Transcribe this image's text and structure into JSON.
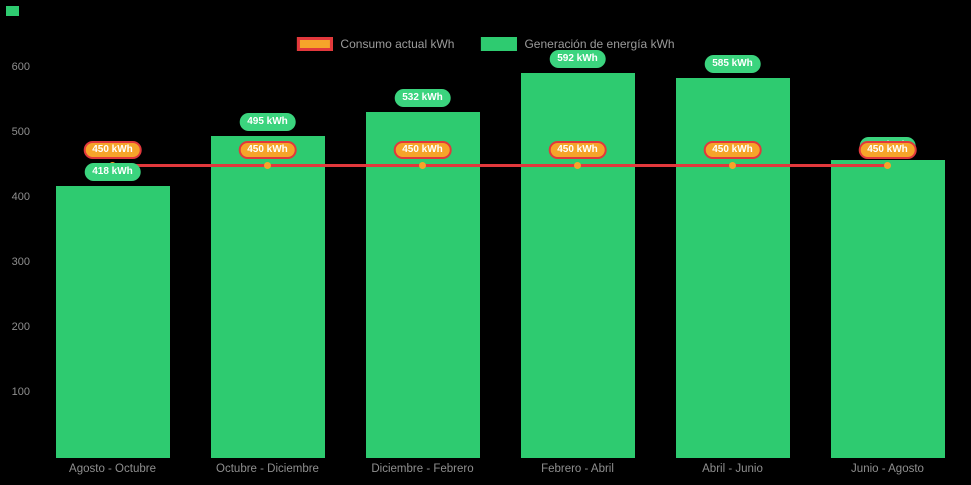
{
  "page": {
    "background": "#000000"
  },
  "legend": [
    {
      "label": "Consumo actual kWh",
      "type": "line",
      "swatch_fill": "#f6a42a",
      "swatch_border": "#e2383c"
    },
    {
      "label": "Generación de energía kWh",
      "type": "bar",
      "swatch_fill": "#2ecb70",
      "swatch_border": "#2ecb70"
    }
  ],
  "chart_data": {
    "type": "bar",
    "categories": [
      "Agosto - Octubre",
      "Octubre - Diciembre",
      "Diciembre - Febrero",
      "Febrero - Abril",
      "Abril - Junio",
      "Junio - Agosto"
    ],
    "series": [
      {
        "name": "Generación de energía kWh",
        "type": "bar",
        "color": "#2ecb70",
        "label_color": "#3bd47e",
        "values": [
          418,
          495,
          532,
          592,
          585,
          458
        ],
        "labels": [
          "418 kWh",
          "495 kWh",
          "532 kWh",
          "592 kWh",
          "585 kWh",
          "458 kWh"
        ]
      },
      {
        "name": "Consumo actual kWh",
        "type": "line",
        "color": "#e2383c",
        "marker_color": "#f6a42a",
        "values": [
          450,
          450,
          450,
          450,
          450,
          450
        ],
        "labels": [
          "450 kWh",
          "450 kWh",
          "450 kWh",
          "450 kWh",
          "450 kWh",
          "450 kWh"
        ]
      }
    ],
    "title": "",
    "xlabel": "",
    "ylabel": "",
    "yticks": [
      100,
      200,
      300,
      400,
      500,
      600
    ],
    "ylim": [
      0,
      620
    ],
    "grid": false,
    "legend_position": "top-center",
    "background": "#000000"
  }
}
